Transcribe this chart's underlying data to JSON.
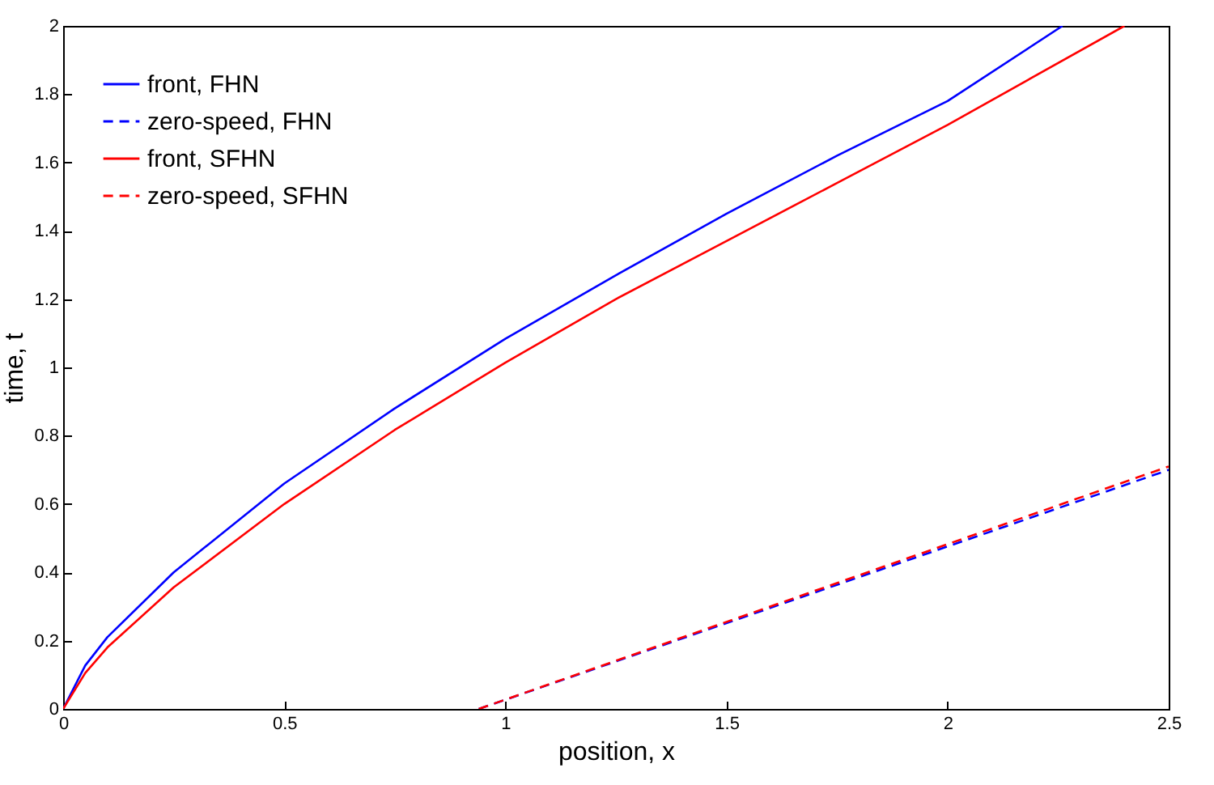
{
  "chart_data": {
    "type": "line",
    "xlabel": "position, x",
    "ylabel": "time, t",
    "xlim": [
      0,
      2.5
    ],
    "ylim": [
      0,
      2
    ],
    "xticks": [
      0,
      0.5,
      1,
      1.5,
      2,
      2.5
    ],
    "yticks": [
      0,
      0.2,
      0.4,
      0.6,
      0.8,
      1,
      1.2,
      1.4,
      1.6,
      1.8,
      2
    ],
    "grid": false,
    "legend": "top left",
    "series": [
      {
        "name": "front, FHN",
        "color": "#0000ff",
        "line_style": "solid",
        "x": [
          0,
          0.05,
          0.1,
          0.25,
          0.5,
          0.75,
          1,
          1.25,
          1.5,
          1.75,
          2,
          2.26
        ],
        "values": [
          0,
          0.127,
          0.21,
          0.4,
          0.66,
          0.88,
          1.084,
          1.27,
          1.45,
          1.62,
          1.78,
          2
        ]
      },
      {
        "name": "zero-speed, FHN",
        "color": "#0000ff",
        "line_style": "dashed",
        "x": [
          0.94,
          2.5
        ],
        "values": [
          0,
          0.7
        ]
      },
      {
        "name": "front, SFHN",
        "color": "#ff0000",
        "line_style": "solid",
        "x": [
          0,
          0.05,
          0.1,
          0.25,
          0.5,
          0.75,
          1,
          1.25,
          1.5,
          1.75,
          2,
          2.4
        ],
        "values": [
          0,
          0.105,
          0.18,
          0.356,
          0.6,
          0.817,
          1.014,
          1.2,
          1.37,
          1.54,
          1.71,
          2
        ]
      },
      {
        "name": "zero-speed, SFHN",
        "color": "#ff0000",
        "line_style": "dashed",
        "x": [
          0.94,
          2.5
        ],
        "values": [
          0,
          0.71
        ]
      }
    ]
  }
}
